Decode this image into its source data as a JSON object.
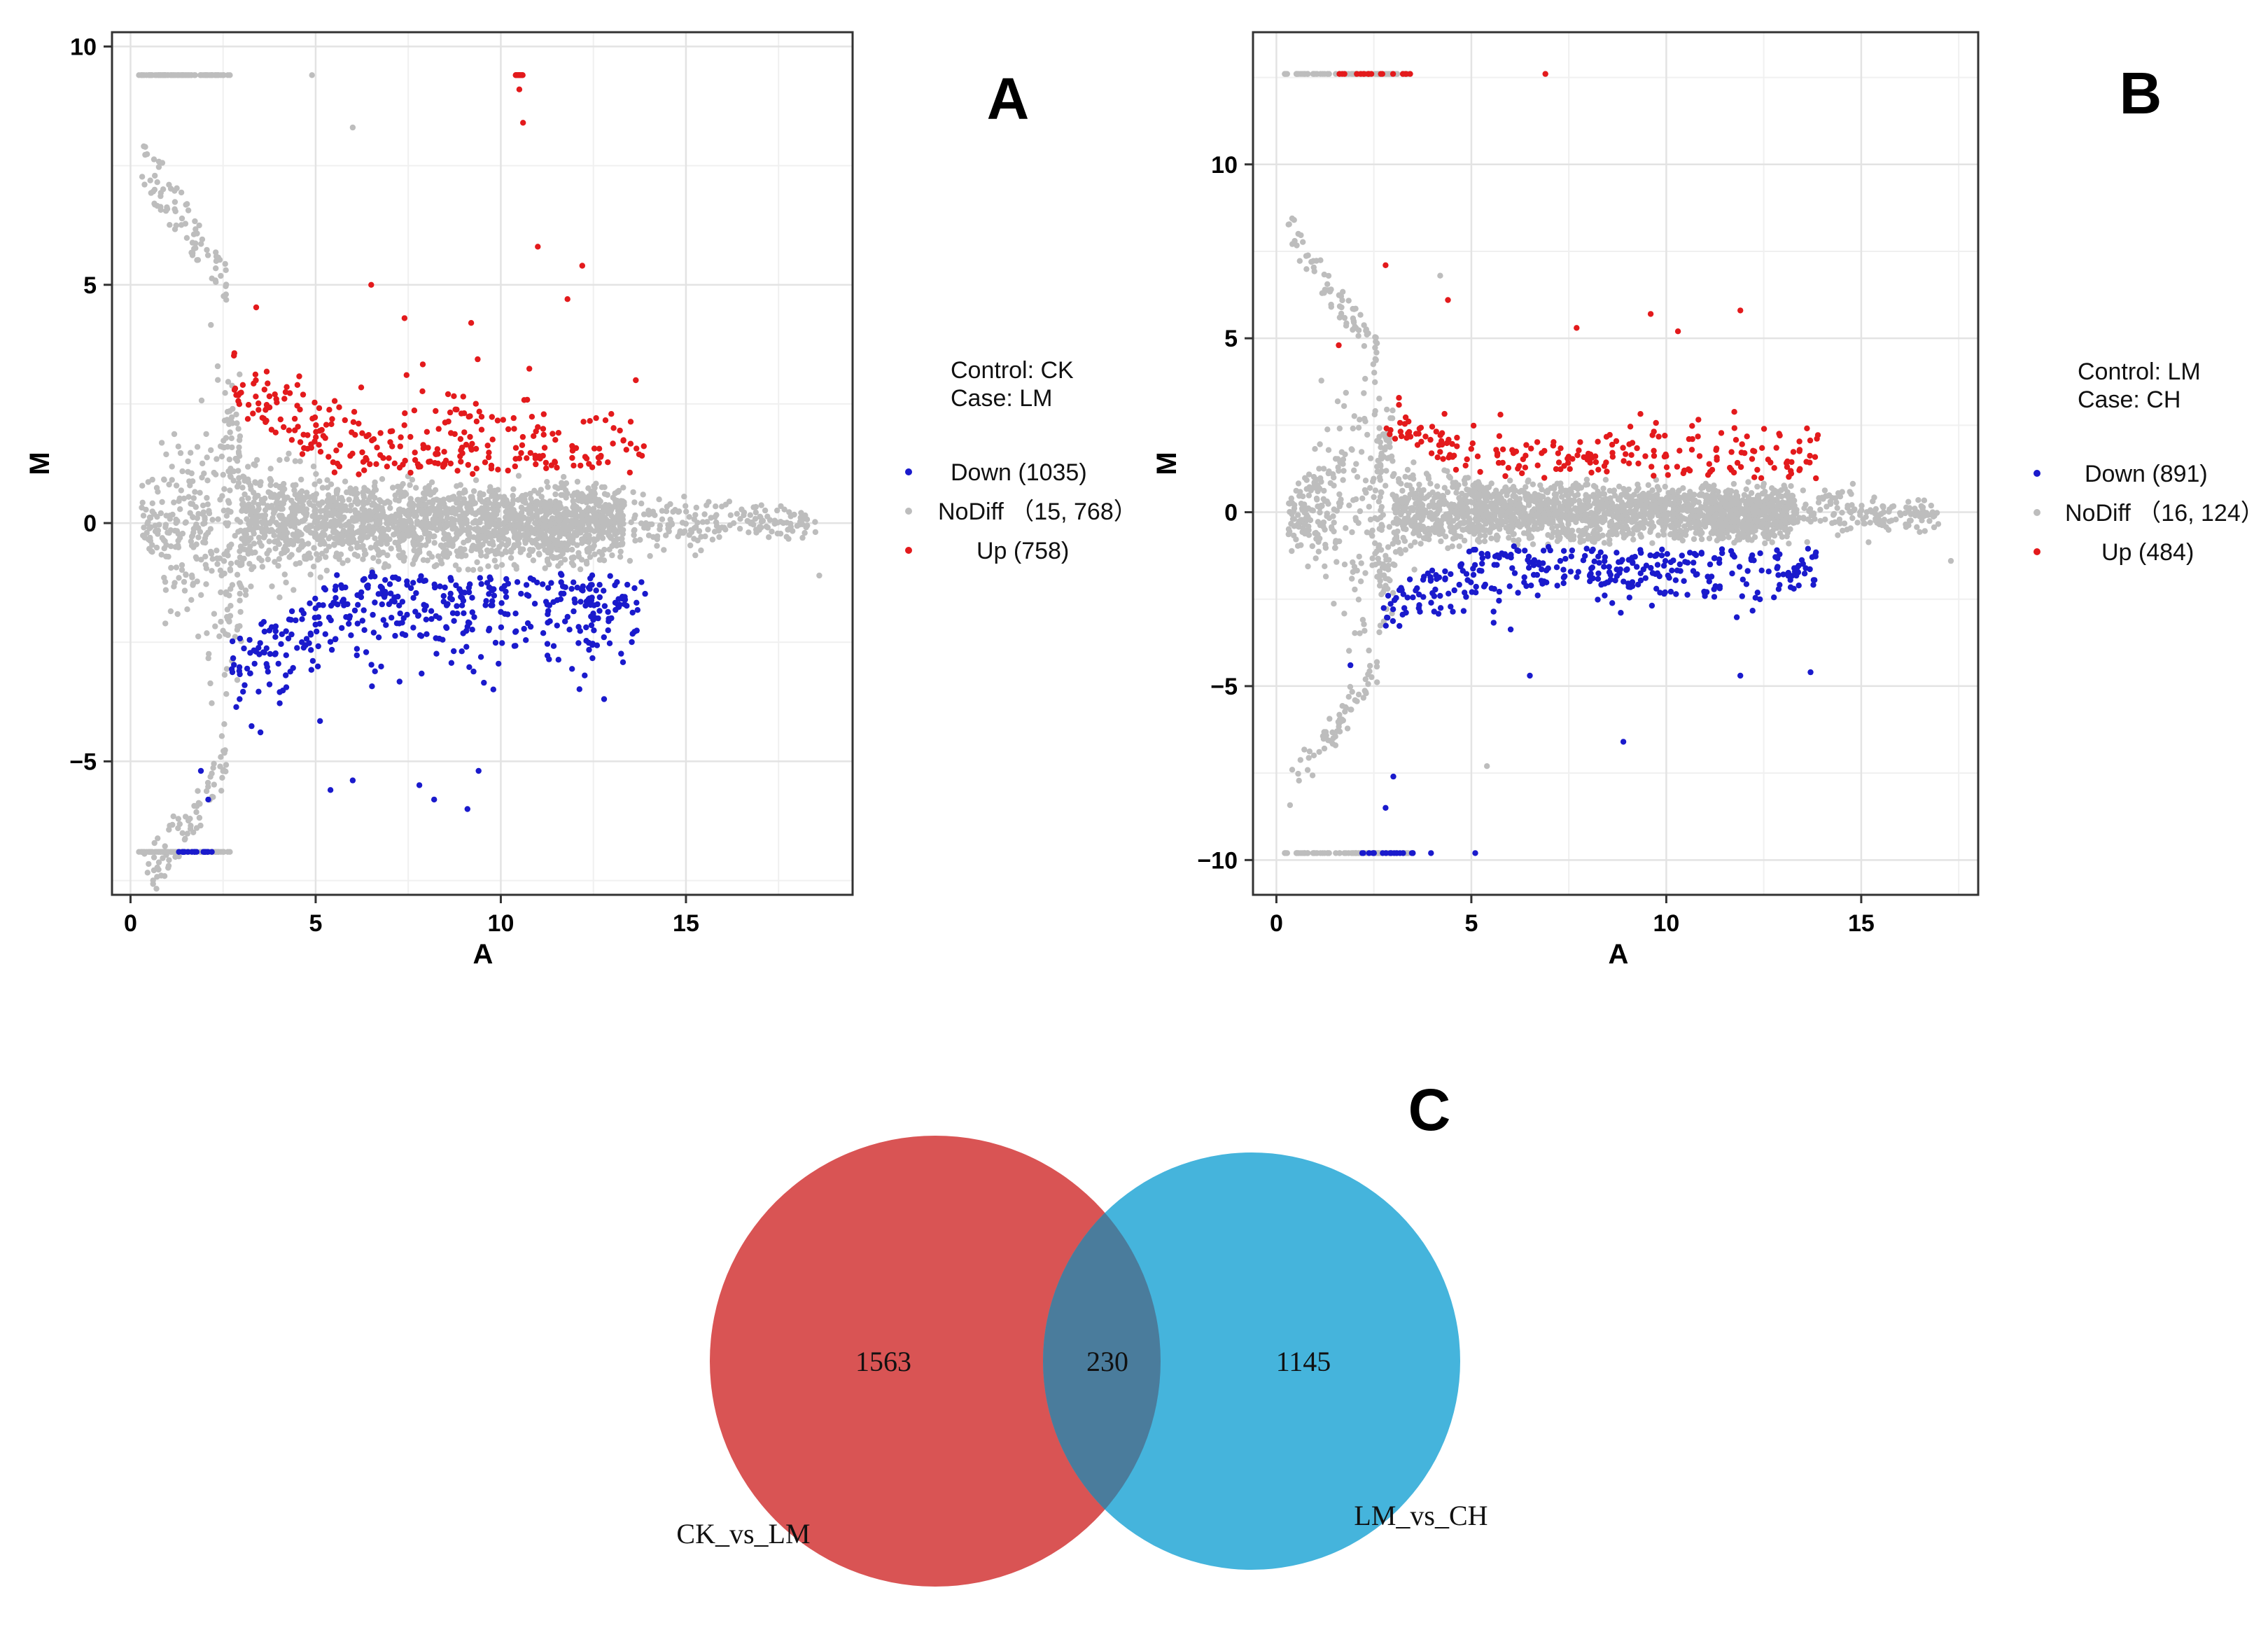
{
  "colors": {
    "down": "#1a1acc",
    "nodiff": "#bdbdbd",
    "up": "#e31a1c",
    "venn_left": "#d95454",
    "venn_right": "#45b4dc",
    "venn_overlap": "#4a7c9c"
  },
  "chart_data": [
    {
      "type": "scatter",
      "panel_label": "A",
      "xlabel": "A",
      "ylabel": "M",
      "xlim": [
        -0.5,
        19.5
      ],
      "ylim": [
        -7.8,
        10.3
      ],
      "x_ticks": [
        0,
        5,
        10,
        15
      ],
      "x_tick_labels": [
        "0",
        "5",
        "10",
        "15"
      ],
      "y_ticks": [
        -5,
        0,
        5,
        10
      ],
      "y_tick_labels": [
        "−5",
        "0",
        "5",
        "10"
      ],
      "grid": true,
      "legend": {
        "position": "right",
        "control": "Control: CK",
        "case": "Case:    LM",
        "entries": [
          {
            "key": "down",
            "label": "Down (1035)"
          },
          {
            "key": "nodiff",
            "label": "NoDiff （15, 768）"
          },
          {
            "key": "up",
            "label": "Up (758)"
          }
        ]
      },
      "series": [
        {
          "name": "Down",
          "count": 1035
        },
        {
          "name": "NoDiff",
          "count": 15768
        },
        {
          "name": "Up",
          "count": 758
        }
      ],
      "saturation_levels": {
        "top": 9.4,
        "bottom": -6.9
      },
      "highlight_points": {
        "up": [
          [
            10.5,
            9.1
          ],
          [
            10.6,
            8.4
          ],
          [
            11.0,
            5.8
          ],
          [
            12.2,
            5.4
          ],
          [
            6.5,
            5.0
          ],
          [
            9.2,
            4.2
          ],
          [
            11.8,
            4.7
          ],
          [
            7.4,
            4.3
          ]
        ],
        "down": [
          [
            9.1,
            -6.0
          ],
          [
            6.0,
            -5.4
          ],
          [
            8.2,
            -5.8
          ],
          [
            5.4,
            -5.6
          ],
          [
            7.8,
            -5.5
          ],
          [
            9.4,
            -5.2
          ],
          [
            1.9,
            -5.2
          ],
          [
            2.1,
            -5.8
          ]
        ],
        "nodiff": [
          [
            4.9,
            9.4
          ],
          [
            6.0,
            8.3
          ],
          [
            18.6,
            -1.1
          ]
        ]
      }
    },
    {
      "type": "scatter",
      "panel_label": "B",
      "xlabel": "A",
      "ylabel": "M",
      "xlim": [
        -0.6,
        18.0
      ],
      "ylim": [
        -11.0,
        13.8
      ],
      "x_ticks": [
        0,
        5,
        10,
        15
      ],
      "x_tick_labels": [
        "0",
        "5",
        "10",
        "15"
      ],
      "y_ticks": [
        -10,
        -5,
        0,
        5,
        10
      ],
      "y_tick_labels": [
        "−10",
        "−5",
        "0",
        "5",
        "10"
      ],
      "grid": true,
      "legend": {
        "position": "right",
        "control": "Control: LM",
        "case": "Case:    CH",
        "entries": [
          {
            "key": "down",
            "label": "Down (891)"
          },
          {
            "key": "nodiff",
            "label": "NoDiff （16, 124）"
          },
          {
            "key": "up",
            "label": "Up (484)"
          }
        ]
      },
      "series": [
        {
          "name": "Down",
          "count": 891
        },
        {
          "name": "NoDiff",
          "count": 16124
        },
        {
          "name": "Up",
          "count": 484
        }
      ],
      "saturation_levels": {
        "top": 12.6,
        "bottom": -9.8
      },
      "highlight_points": {
        "up": [
          [
            6.9,
            12.6
          ],
          [
            2.8,
            7.1
          ],
          [
            9.6,
            5.7
          ],
          [
            11.9,
            5.8
          ],
          [
            4.4,
            6.1
          ],
          [
            7.7,
            5.3
          ],
          [
            10.3,
            5.2
          ],
          [
            1.6,
            4.8
          ]
        ],
        "down": [
          [
            8.9,
            -6.6
          ],
          [
            2.8,
            -8.5
          ],
          [
            3.0,
            -7.6
          ],
          [
            6.5,
            -4.7
          ],
          [
            11.9,
            -4.7
          ],
          [
            1.9,
            -4.4
          ],
          [
            13.7,
            -4.6
          ],
          [
            5.1,
            -9.8
          ]
        ],
        "nodiff": [
          [
            4.2,
            6.8
          ],
          [
            5.4,
            -7.3
          ],
          [
            17.3,
            -1.4
          ]
        ]
      }
    },
    {
      "type": "venn",
      "panel_label": "C",
      "sets": [
        {
          "name": "CK_vs_LM",
          "only": 1563
        },
        {
          "name": "LM_vs_CH",
          "only": 1145
        }
      ],
      "intersection": 230
    }
  ]
}
